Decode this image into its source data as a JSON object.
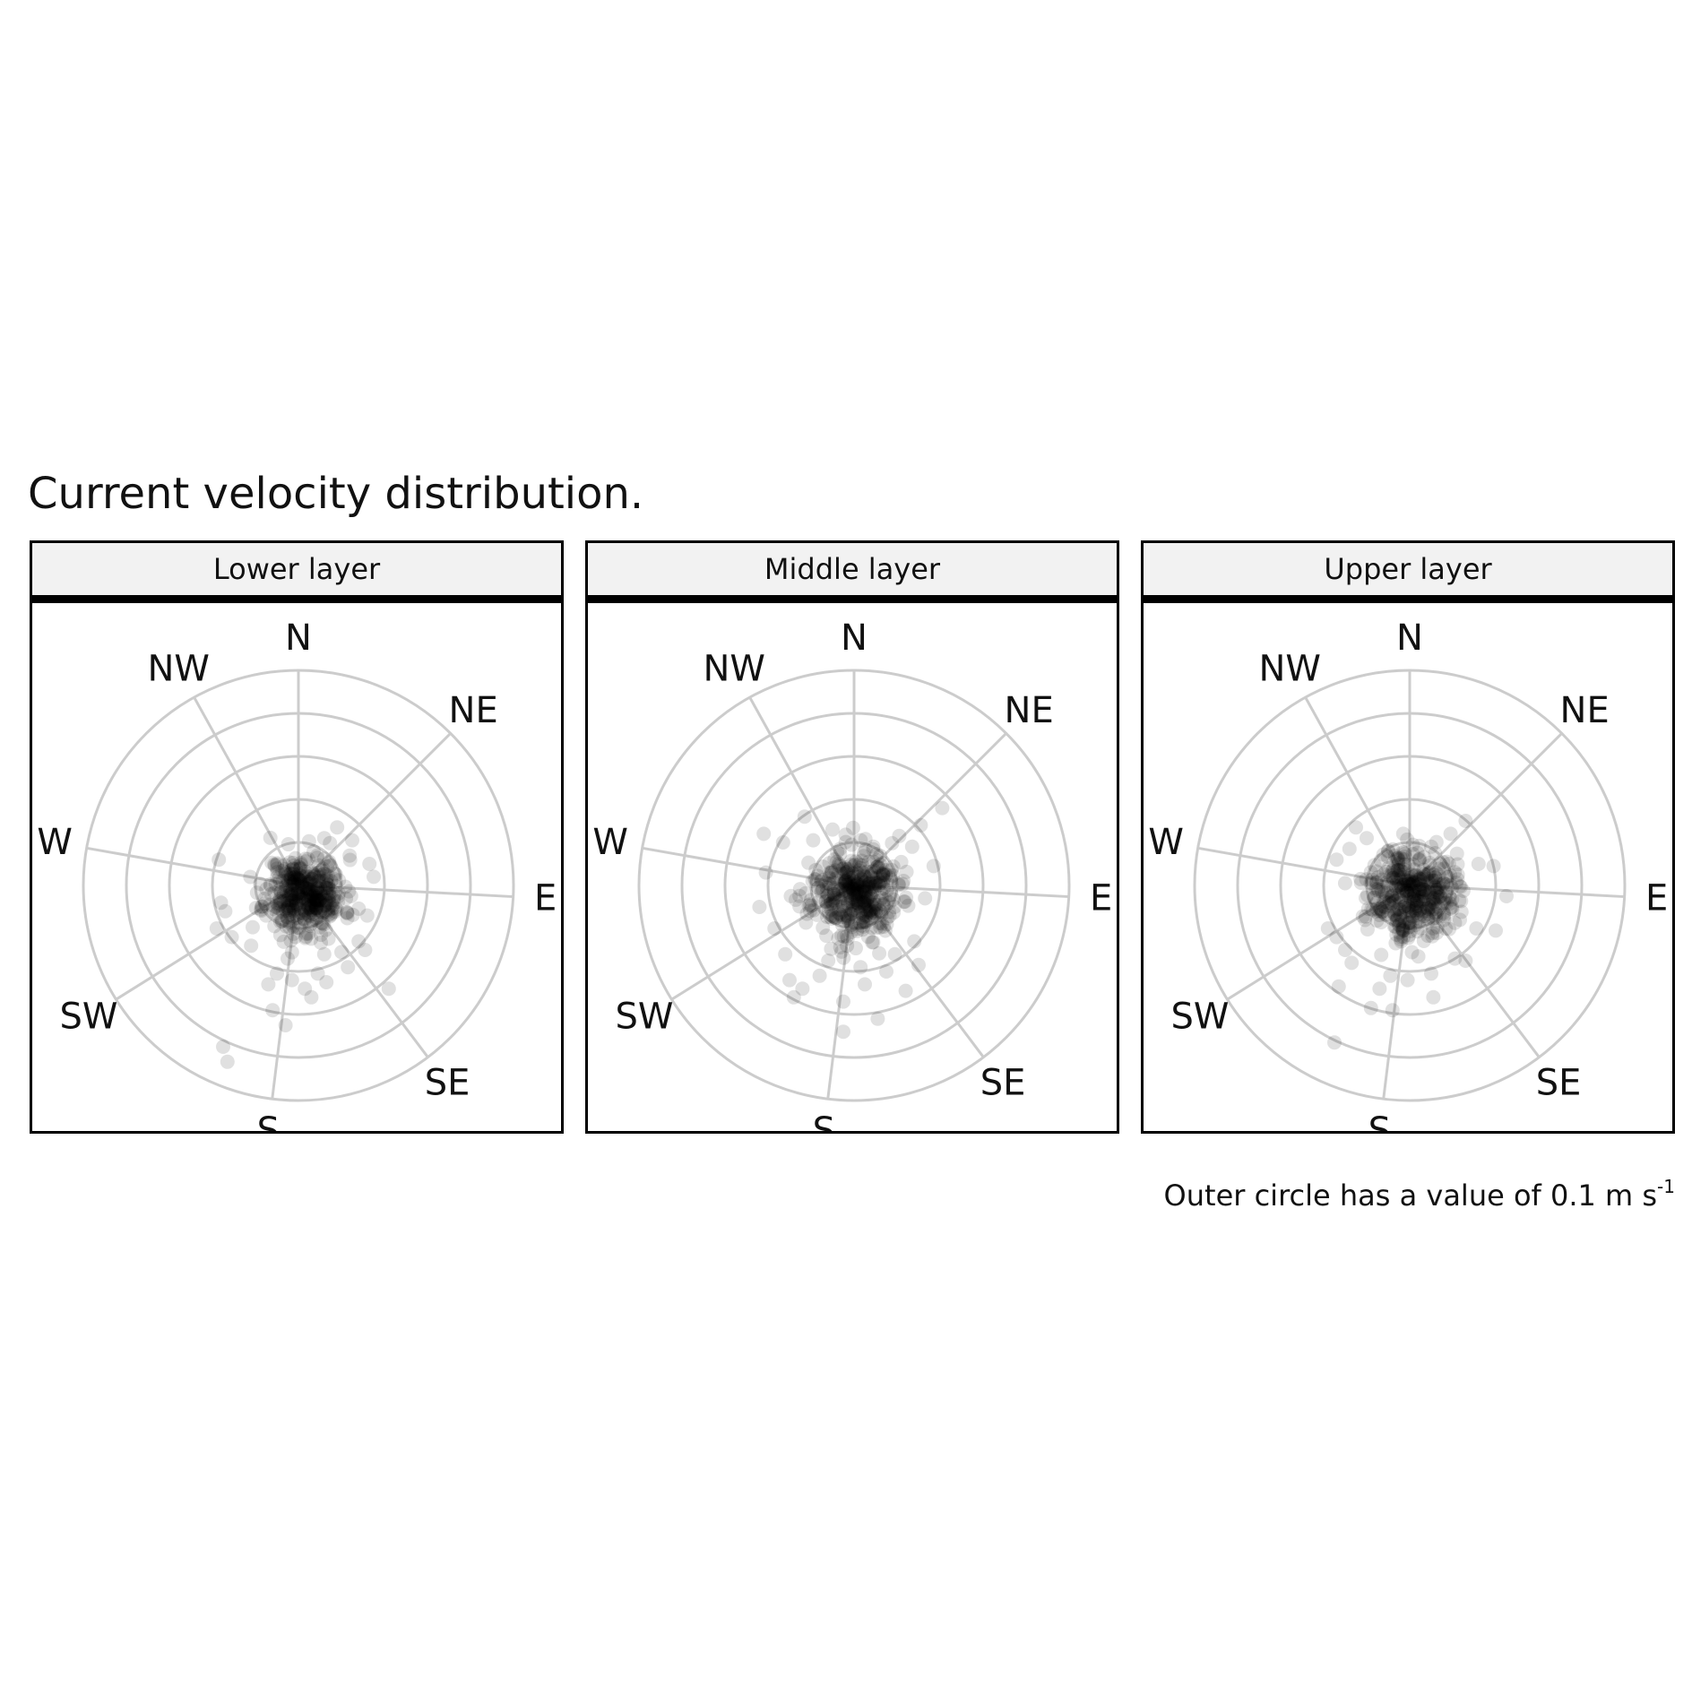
{
  "title": "Current velocity distribution.",
  "caption": {
    "text": "Outer circle has a value of 0.1 m s",
    "superscript": "-1"
  },
  "colors": {
    "point": "#000000",
    "grid": "#cccccc",
    "strip_fill": "#f2f2f2",
    "frame": "#000000"
  },
  "compass": [
    {
      "label": "N",
      "deg": 0
    },
    {
      "label": "NE",
      "deg": 45
    },
    {
      "label": "E",
      "deg": 93
    },
    {
      "label": "SE",
      "deg": 143
    },
    {
      "label": "S",
      "deg": 187
    },
    {
      "label": "SW",
      "deg": 238
    },
    {
      "label": "W",
      "deg": 280
    },
    {
      "label": "NW",
      "deg": 331
    }
  ],
  "chart_data": [
    {
      "type": "scatter",
      "coordinate_system": "polar",
      "title": "Lower layer",
      "r_max": 0.1,
      "r_rings": [
        0.02,
        0.04,
        0.06,
        0.08,
        0.1
      ],
      "point_alpha": 0.12,
      "bulk": {
        "center": [
          0.003,
          -0.004
        ],
        "spread": 0.009,
        "count": 420,
        "seed": 11
      },
      "points": [
        [
          -0.035,
          -0.075
        ],
        [
          -0.033,
          -0.082
        ],
        [
          -0.006,
          -0.065
        ],
        [
          -0.012,
          -0.058
        ],
        [
          0.003,
          -0.048
        ],
        [
          0.013,
          -0.045
        ],
        [
          0.006,
          -0.052
        ],
        [
          0.042,
          -0.048
        ],
        [
          0.023,
          -0.038
        ],
        [
          -0.014,
          -0.046
        ],
        [
          -0.01,
          -0.041
        ],
        [
          0.009,
          -0.041
        ],
        [
          -0.038,
          -0.02
        ],
        [
          -0.034,
          -0.012
        ],
        [
          -0.036,
          -0.008
        ],
        [
          -0.031,
          -0.024
        ],
        [
          -0.037,
          0.012
        ],
        [
          0.018,
          0.027
        ],
        [
          0.012,
          0.022
        ],
        [
          0.025,
          0.021
        ],
        [
          0.033,
          0.01
        ],
        [
          0.035,
          0.004
        ],
        [
          0.032,
          -0.014
        ],
        [
          0.028,
          -0.026
        ],
        [
          0.012,
          -0.032
        ],
        [
          -0.005,
          -0.034
        ],
        [
          0.02,
          -0.031
        ],
        [
          -0.022,
          -0.028
        ],
        [
          -0.003,
          -0.044
        ],
        [
          0.031,
          -0.03
        ]
      ]
    },
    {
      "type": "scatter",
      "coordinate_system": "polar",
      "title": "Middle layer",
      "r_max": 0.1,
      "r_rings": [
        0.02,
        0.04,
        0.06,
        0.08,
        0.1
      ],
      "point_alpha": 0.12,
      "bulk": {
        "center": [
          0.0,
          -0.004
        ],
        "spread": 0.01,
        "count": 420,
        "seed": 23
      },
      "points": [
        [
          -0.042,
          0.024
        ],
        [
          -0.023,
          0.032
        ],
        [
          -0.01,
          0.026
        ],
        [
          -0.019,
          0.021
        ],
        [
          -0.033,
          0.02
        ],
        [
          0.021,
          0.023
        ],
        [
          0.027,
          0.018
        ],
        [
          0.031,
          0.028
        ],
        [
          0.041,
          0.036
        ],
        [
          0.037,
          0.009
        ],
        [
          0.033,
          -0.006
        ],
        [
          -0.041,
          0.006
        ],
        [
          -0.044,
          -0.01
        ],
        [
          -0.037,
          -0.02
        ],
        [
          -0.03,
          -0.044
        ],
        [
          -0.024,
          -0.048
        ],
        [
          -0.016,
          -0.042
        ],
        [
          -0.005,
          -0.054
        ],
        [
          -0.005,
          -0.068
        ],
        [
          0.011,
          -0.062
        ],
        [
          0.024,
          -0.049
        ],
        [
          0.005,
          -0.046
        ],
        [
          0.015,
          -0.04
        ],
        [
          -0.028,
          -0.052
        ],
        [
          0.03,
          -0.037
        ],
        [
          -0.012,
          -0.035
        ],
        [
          0.019,
          -0.032
        ],
        [
          -0.032,
          -0.032
        ],
        [
          0.028,
          -0.026
        ],
        [
          0.003,
          -0.038
        ]
      ]
    },
    {
      "type": "scatter",
      "coordinate_system": "polar",
      "title": "Upper layer",
      "r_max": 0.1,
      "r_rings": [
        0.02,
        0.04,
        0.06,
        0.08,
        0.1
      ],
      "point_alpha": 0.12,
      "bulk": {
        "center": [
          0.001,
          -0.003
        ],
        "spread": 0.01,
        "count": 420,
        "seed": 37
      },
      "points": [
        [
          -0.035,
          -0.073
        ],
        [
          -0.018,
          -0.057
        ],
        [
          -0.008,
          -0.058
        ],
        [
          -0.014,
          -0.048
        ],
        [
          -0.009,
          -0.042
        ],
        [
          0.01,
          -0.041
        ],
        [
          0.021,
          -0.034
        ],
        [
          0.004,
          -0.033
        ],
        [
          0.019,
          0.024
        ],
        [
          0.026,
          0.03
        ],
        [
          0.01,
          0.018
        ],
        [
          0.032,
          0.01
        ],
        [
          0.039,
          0.009
        ],
        [
          0.045,
          -0.005
        ],
        [
          0.04,
          -0.021
        ],
        [
          0.026,
          -0.035
        ],
        [
          -0.028,
          0.017
        ],
        [
          -0.025,
          0.027
        ],
        [
          -0.034,
          0.012
        ],
        [
          -0.02,
          0.022
        ],
        [
          -0.003,
          0.024
        ],
        [
          -0.038,
          -0.02
        ],
        [
          -0.034,
          -0.024
        ],
        [
          -0.03,
          -0.03
        ],
        [
          -0.027,
          -0.036
        ],
        [
          -0.033,
          -0.047
        ],
        [
          0.011,
          -0.052
        ],
        [
          -0.001,
          -0.044
        ],
        [
          0.031,
          -0.02
        ],
        [
          -0.004,
          -0.026
        ]
      ]
    }
  ]
}
